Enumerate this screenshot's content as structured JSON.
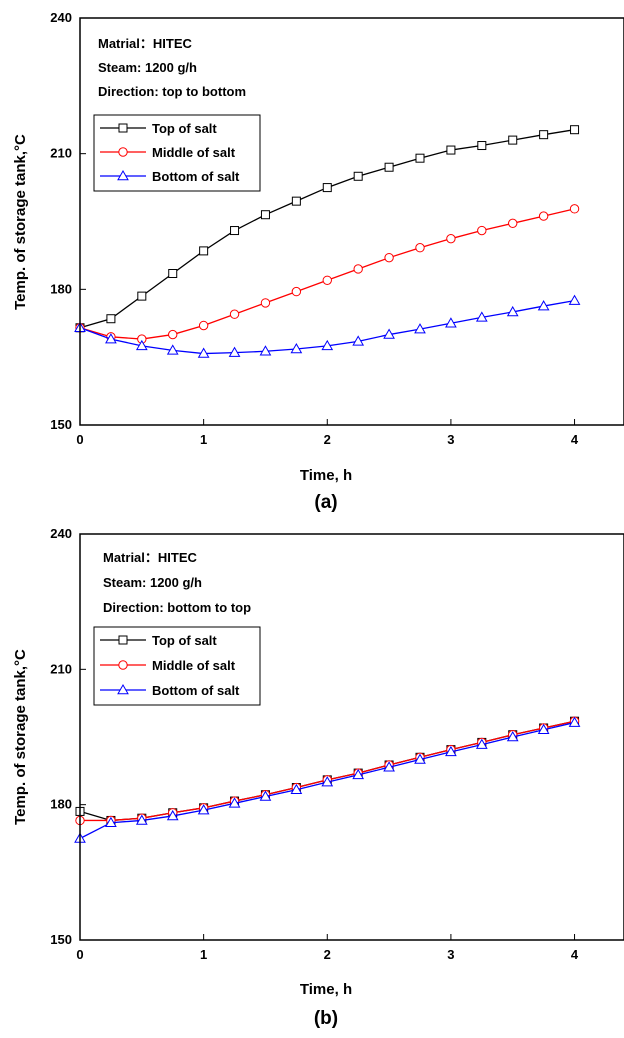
{
  "chart_data": [
    {
      "type": "line",
      "panel_label": "(a)",
      "xlabel": "Time, h",
      "ylabel": "Temp. of storage tank,°C",
      "xlim": [
        0,
        4.4
      ],
      "ylim": [
        150,
        240
      ],
      "xticks": [
        0,
        1,
        2,
        3,
        4
      ],
      "yticks": [
        150,
        180,
        210,
        240
      ],
      "grid": false,
      "legend_position": "upper-left",
      "annotations": [
        "Matrial：HITEC",
        "Steam: 1200 g/h",
        "Direction: top to bottom"
      ],
      "x": [
        0,
        0.25,
        0.5,
        0.75,
        1,
        1.25,
        1.5,
        1.75,
        2,
        2.25,
        2.5,
        2.75,
        3,
        3.25,
        3.5,
        3.75,
        4
      ],
      "series": [
        {
          "name": "Top of salt",
          "color": "#000000",
          "marker": "square",
          "values": [
            171.5,
            173.5,
            178.5,
            183.5,
            188.5,
            193.0,
            196.5,
            199.5,
            202.5,
            205.0,
            207.0,
            209.0,
            210.8,
            211.8,
            213.0,
            214.2,
            215.3
          ]
        },
        {
          "name": "Middle of salt",
          "color": "#ff0000",
          "marker": "circle",
          "values": [
            171.5,
            169.5,
            169.0,
            170.0,
            172.0,
            174.5,
            177.0,
            179.5,
            182.0,
            184.5,
            187.0,
            189.2,
            191.2,
            193.0,
            194.6,
            196.2,
            197.8
          ]
        },
        {
          "name": "Bottom of salt",
          "color": "#0000ff",
          "marker": "triangle",
          "values": [
            171.5,
            169.0,
            167.5,
            166.5,
            165.8,
            166.0,
            166.3,
            166.8,
            167.5,
            168.5,
            170.0,
            171.2,
            172.5,
            173.8,
            175.0,
            176.3,
            177.5
          ]
        }
      ]
    },
    {
      "type": "line",
      "panel_label": "(b)",
      "xlabel": "Time, h",
      "ylabel": "Temp. of storage tank,°C",
      "xlim": [
        0,
        4.4
      ],
      "ylim": [
        150,
        240
      ],
      "xticks": [
        0,
        1,
        2,
        3,
        4
      ],
      "yticks": [
        150,
        180,
        210,
        240
      ],
      "grid": false,
      "legend_position": "upper-left",
      "annotations": [
        "Matrial：HITEC",
        "Steam: 1200 g/h",
        "Direction: bottom to top"
      ],
      "x": [
        0,
        0.25,
        0.5,
        0.75,
        1,
        1.25,
        1.5,
        1.75,
        2,
        2.25,
        2.5,
        2.75,
        3,
        3.25,
        3.5,
        3.75,
        4
      ],
      "series": [
        {
          "name": "Top of salt",
          "color": "#000000",
          "marker": "square",
          "values": [
            178.5,
            176.5,
            177.0,
            178.2,
            179.3,
            180.8,
            182.2,
            183.8,
            185.5,
            187.0,
            188.8,
            190.5,
            192.2,
            193.8,
            195.5,
            197.0,
            198.5
          ]
        },
        {
          "name": "Middle of salt",
          "color": "#ff0000",
          "marker": "circle",
          "values": [
            176.5,
            176.5,
            177.0,
            178.2,
            179.3,
            180.8,
            182.2,
            183.8,
            185.5,
            187.0,
            188.8,
            190.5,
            192.2,
            193.8,
            195.5,
            197.0,
            198.5
          ]
        },
        {
          "name": "Bottom of salt",
          "color": "#0000ff",
          "marker": "triangle",
          "values": [
            172.5,
            176.0,
            176.5,
            177.5,
            178.8,
            180.3,
            181.8,
            183.3,
            185.0,
            186.6,
            188.3,
            190.0,
            191.7,
            193.3,
            195.0,
            196.6,
            198.2
          ]
        }
      ]
    }
  ]
}
